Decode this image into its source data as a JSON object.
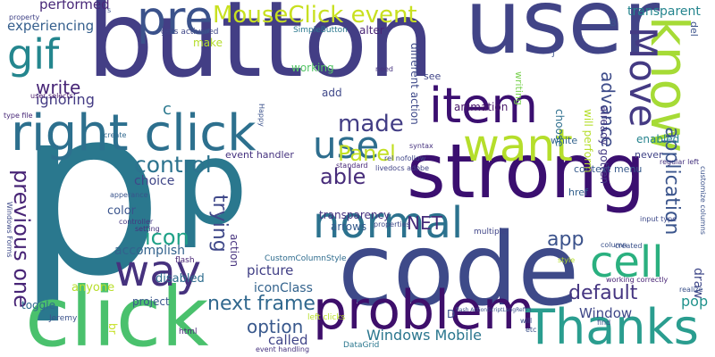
{
  "words": [
    {
      "text": "button",
      "color": "#433e85",
      "vertical": false
    },
    {
      "text": "p",
      "color": "#2a788e",
      "vertical": false
    },
    {
      "text": "p",
      "color": "#2a788e",
      "vertical": false
    },
    {
      "text": "code",
      "color": "#3e4a89",
      "vertical": false
    },
    {
      "text": "strong",
      "color": "#3b0f70",
      "vertical": false
    },
    {
      "text": "user",
      "color": "#414487",
      "vertical": false
    },
    {
      "text": "click",
      "color": "#4ac16d",
      "vertical": false
    },
    {
      "text": "right click",
      "color": "#2d708e",
      "vertical": false
    },
    {
      "text": "problem",
      "color": "#3e0f6b",
      "vertical": false
    },
    {
      "text": "Thanks",
      "color": "#2a9d8f",
      "vertical": false
    },
    {
      "text": "pre",
      "color": "#3b528b",
      "vertical": false
    },
    {
      "text": "know",
      "color": "#a6db36",
      "vertical": true
    },
    {
      "text": "Move",
      "color": "#443a83",
      "vertical": true
    },
    {
      "text": "item",
      "color": "#3b0f70",
      "vertical": false
    },
    {
      "text": "want",
      "color": "#b5de2b",
      "vertical": false
    },
    {
      "text": "cell",
      "color": "#2ab07f",
      "vertical": false
    },
    {
      "text": "normal",
      "color": "#2c728e",
      "vertical": false
    },
    {
      "text": "way",
      "color": "#46327e",
      "vertical": false
    },
    {
      "text": "use",
      "color": "#2e6e8e",
      "vertical": false
    },
    {
      "text": "gif",
      "color": "#24868e",
      "vertical": false
    },
    {
      "text": "MouseClick event",
      "color": "#c8e020",
      "vertical": false
    },
    {
      "text": "control",
      "color": "#2c738e",
      "vertical": false
    },
    {
      "text": "made",
      "color": "#433e85",
      "vertical": false
    },
    {
      "text": "Panel",
      "color": "#c2df23",
      "vertical": false
    },
    {
      "text": "able",
      "color": "#472c7a",
      "vertical": false
    },
    {
      "text": "icon",
      "color": "#1fa187",
      "vertical": false
    },
    {
      "text": "previous one",
      "color": "#482576",
      "vertical": true
    },
    {
      "text": "trying",
      "color": "#3f4889",
      "vertical": true
    },
    {
      "text": "next frame",
      "color": "#31688e",
      "vertical": false
    },
    {
      "text": "NET",
      "color": "#472d7b",
      "vertical": false
    },
    {
      "text": "app",
      "color": "#3b528b",
      "vertical": false
    },
    {
      "text": "default",
      "color": "#453581",
      "vertical": false
    },
    {
      "text": "option",
      "color": "#38588c",
      "vertical": false
    },
    {
      "text": "application",
      "color": "#3a548c",
      "vertical": true
    },
    {
      "text": "advance",
      "color": "#3e4c8a",
      "vertical": true
    },
    {
      "text": "write",
      "color": "#482677",
      "vertical": false
    },
    {
      "text": "experiencing",
      "color": "#355f8d",
      "vertical": false
    },
    {
      "text": "ignoring",
      "color": "#443b84",
      "vertical": false
    },
    {
      "text": "performed",
      "color": "#482878",
      "vertical": false
    },
    {
      "text": "transparent",
      "color": "#25858e",
      "vertical": false
    },
    {
      "text": "pop",
      "color": "#20928c",
      "vertical": false
    },
    {
      "text": "Windows Mobile",
      "color": "#2a768e",
      "vertical": false
    },
    {
      "text": "Window",
      "color": "#3f4788",
      "vertical": false
    },
    {
      "text": "called",
      "color": "#404588",
      "vertical": false
    },
    {
      "text": "picture",
      "color": "#424086",
      "vertical": false
    },
    {
      "text": "iconClass",
      "color": "#33638d",
      "vertical": false
    },
    {
      "text": "anyone",
      "color": "#b8de29",
      "vertical": false
    },
    {
      "text": "color",
      "color": "#3a548c",
      "vertical": false
    },
    {
      "text": "choice",
      "color": "#404688",
      "vertical": false
    },
    {
      "text": "accomplish",
      "color": "#33628d",
      "vertical": false
    },
    {
      "text": "disabled",
      "color": "#2e6d8e",
      "vertical": false
    },
    {
      "text": "toggle",
      "color": "#2f6b8e",
      "vertical": false
    },
    {
      "text": "project",
      "color": "#39568c",
      "vertical": false
    },
    {
      "text": "transparency",
      "color": "#46337f",
      "vertical": false
    },
    {
      "text": "arrows",
      "color": "#365c8d",
      "vertical": false
    },
    {
      "text": "animation",
      "color": "#48186a",
      "vertical": false
    },
    {
      "text": "enabled",
      "color": "#25838e",
      "vertical": false
    },
    {
      "text": "context menu",
      "color": "#375a8c",
      "vertical": false
    },
    {
      "text": "href",
      "color": "#34618d",
      "vertical": false
    },
    {
      "text": "white",
      "color": "#33638d",
      "vertical": false
    },
    {
      "text": "never",
      "color": "#414487",
      "vertical": false
    },
    {
      "text": "add",
      "color": "#3f4889",
      "vertical": false
    },
    {
      "text": "working",
      "color": "#56c667",
      "vertical": false
    },
    {
      "text": "SimpleButton",
      "color": "#2a788e",
      "vertical": false
    },
    {
      "text": "alter",
      "color": "#482475",
      "vertical": false
    },
    {
      "text": "make",
      "color": "#b5de2b",
      "vertical": false
    },
    {
      "text": "see",
      "color": "#404588",
      "vertical": false
    },
    {
      "text": "different action",
      "color": "#3e4989",
      "vertical": true
    },
    {
      "text": "already gotten",
      "color": "#443983",
      "vertical": true
    },
    {
      "text": "will perform",
      "color": "#b5de2b",
      "vertical": true
    },
    {
      "text": "choose",
      "color": "#2e6f8e",
      "vertical": true
    },
    {
      "text": "writing",
      "color": "#7ad151",
      "vertical": true
    },
    {
      "text": "event handler",
      "color": "#46337f",
      "vertical": false
    },
    {
      "text": "gets activated",
      "color": "#3f4788",
      "vertical": false
    },
    {
      "text": "CustomColumnStyle",
      "color": "#2f6c8e",
      "vertical": false
    },
    {
      "text": "left clicks",
      "color": "#b8de29",
      "vertical": false
    },
    {
      "text": "DataGrid",
      "color": "#2a778e",
      "vertical": false
    },
    {
      "text": "event handling",
      "color": "#46337f",
      "vertical": false
    },
    {
      "text": "html",
      "color": "#482878",
      "vertical": false
    },
    {
      "text": "flash",
      "color": "#482475",
      "vertical": false
    },
    {
      "text": "Jeremy",
      "color": "#3b528b",
      "vertical": false
    },
    {
      "text": "controller",
      "color": "#453882",
      "vertical": false
    },
    {
      "text": "setting",
      "color": "#46307e",
      "vertical": false
    },
    {
      "text": "apperance",
      "color": "#3a548c",
      "vertical": false
    },
    {
      "text": "create",
      "color": "#31688e",
      "vertical": false
    },
    {
      "text": "Windows Forms",
      "color": "#3e4a89",
      "vertical": true
    },
    {
      "text": "action",
      "color": "#46327e",
      "vertical": true
    },
    {
      "text": "br",
      "color": "#c5e021",
      "vertical": true
    },
    {
      "text": "c",
      "color": "#2a788e",
      "vertical": false
    },
    {
      "text": "D",
      "color": "#3b528b",
      "vertical": false
    },
    {
      "text": "B",
      "color": "#3b528b",
      "vertical": false
    },
    {
      "text": "draw",
      "color": "#3f4889",
      "vertical": true
    },
    {
      "text": "del",
      "color": "#3b528b",
      "vertical": true
    },
    {
      "text": "realize",
      "color": "#3b528b",
      "vertical": false
    },
    {
      "text": "input type",
      "color": "#3e4a89",
      "vertical": false
    },
    {
      "text": "created",
      "color": "#3b528b",
      "vertical": false
    },
    {
      "text": "working correctly",
      "color": "#482475",
      "vertical": false
    },
    {
      "text": "regular left",
      "color": "#46337f",
      "vertical": false
    },
    {
      "text": "customize columns",
      "color": "#3b528b",
      "vertical": true
    },
    {
      "text": "standard",
      "color": "#482878",
      "vertical": false
    },
    {
      "text": "livedocs adobe",
      "color": "#414487",
      "vertical": false
    },
    {
      "text": "rel nofollow",
      "color": "#3f4788",
      "vertical": false
    },
    {
      "text": "syntax",
      "color": "#46327e",
      "vertical": false
    },
    {
      "text": "properties",
      "color": "#3e4a89",
      "vertical": false
    },
    {
      "text": "multiple",
      "color": "#404588",
      "vertical": false
    },
    {
      "text": "need",
      "color": "#46337f",
      "vertical": false
    },
    {
      "text": "user selects",
      "color": "#48186a",
      "vertical": false
    },
    {
      "text": "type file",
      "color": "#482878",
      "vertical": false
    },
    {
      "text": "property",
      "color": "#414487",
      "vertical": false
    },
    {
      "text": "Happy",
      "color": "#3b528b",
      "vertical": true
    },
    {
      "text": "etc",
      "color": "#3b528b",
      "vertical": false
    },
    {
      "text": "will",
      "color": "#3b528b",
      "vertical": false
    },
    {
      "text": "find",
      "color": "#3b528b",
      "vertical": false
    },
    {
      "text": "style",
      "color": "#b5de2b",
      "vertical": false
    },
    {
      "text": "column",
      "color": "#3b528b",
      "vertical": false
    },
    {
      "text": "flash ActionScriptLangRefV3",
      "color": "#3b528b",
      "vertical": false
    },
    {
      "text": "J",
      "color": "#3b528b",
      "vertical": false
    },
    {
      "text": "s",
      "color": "#3b528b",
      "vertical": false
    }
  ]
}
